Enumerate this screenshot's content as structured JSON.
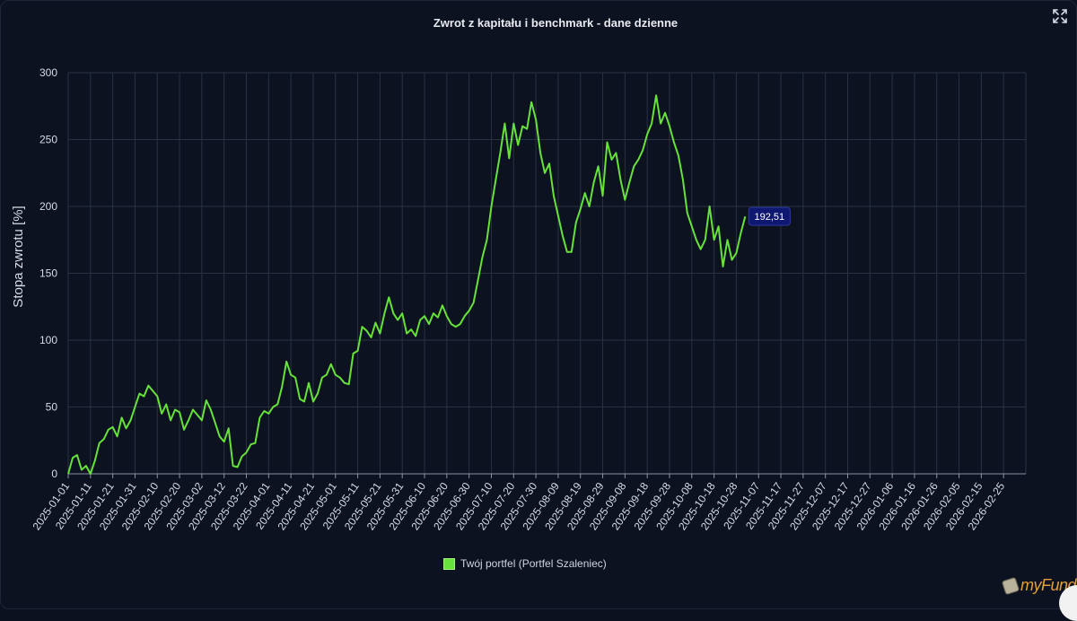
{
  "chart_data": {
    "type": "line",
    "title": "Zwrot z kapitału i benchmark - dane dzienne",
    "ylabel": "Stopa zwrotu [%]",
    "xlabel": "",
    "ylim": [
      0,
      300
    ],
    "yticks": [
      0,
      50,
      100,
      150,
      200,
      250,
      300
    ],
    "xlim": [
      "2025-01-01",
      "2026-03-07"
    ],
    "xtick_labels": [
      "2025-01-01",
      "2025-01-11",
      "2025-01-21",
      "2025-01-31",
      "2025-02-10",
      "2025-02-20",
      "2025-03-02",
      "2025-03-12",
      "2025-03-22",
      "2025-04-01",
      "2025-04-11",
      "2025-04-21",
      "2025-05-01",
      "2025-05-11",
      "2025-05-21",
      "2025-05-31",
      "2025-06-10",
      "2025-06-20",
      "2025-06-30",
      "2025-07-10",
      "2025-07-20",
      "2025-07-30",
      "2025-08-09",
      "2025-08-19",
      "2025-08-29",
      "2025-09-08",
      "2025-09-18",
      "2025-09-28",
      "2025-10-08",
      "2025-10-18",
      "2025-10-28",
      "2025-11-07",
      "2025-11-17",
      "2025-11-27",
      "2025-12-07",
      "2025-12-17",
      "2025-12-27",
      "2026-01-06",
      "2026-01-16",
      "2026-01-26",
      "2026-02-05",
      "2026-02-15",
      "2026-02-25"
    ],
    "grid": true,
    "legend_position": "bottom-center",
    "series": [
      {
        "name": "Twój portfel (Portfel Szaleniec)",
        "color": "#66e23a",
        "points": [
          [
            "2025-01-01",
            0
          ],
          [
            "2025-01-03",
            12
          ],
          [
            "2025-01-05",
            14
          ],
          [
            "2025-01-07",
            3
          ],
          [
            "2025-01-09",
            6
          ],
          [
            "2025-01-11",
            0
          ],
          [
            "2025-01-13",
            10
          ],
          [
            "2025-01-15",
            23
          ],
          [
            "2025-01-17",
            26
          ],
          [
            "2025-01-19",
            33
          ],
          [
            "2025-01-21",
            35
          ],
          [
            "2025-01-23",
            28
          ],
          [
            "2025-01-25",
            42
          ],
          [
            "2025-01-27",
            34
          ],
          [
            "2025-01-29",
            40
          ],
          [
            "2025-01-31",
            50
          ],
          [
            "2025-02-02",
            60
          ],
          [
            "2025-02-04",
            58
          ],
          [
            "2025-02-06",
            66
          ],
          [
            "2025-02-08",
            62
          ],
          [
            "2025-02-10",
            58
          ],
          [
            "2025-02-12",
            45
          ],
          [
            "2025-02-14",
            52
          ],
          [
            "2025-02-16",
            40
          ],
          [
            "2025-02-18",
            48
          ],
          [
            "2025-02-20",
            46
          ],
          [
            "2025-02-22",
            33
          ],
          [
            "2025-02-24",
            40
          ],
          [
            "2025-02-26",
            48
          ],
          [
            "2025-02-28",
            44
          ],
          [
            "2025-03-02",
            40
          ],
          [
            "2025-03-04",
            55
          ],
          [
            "2025-03-06",
            48
          ],
          [
            "2025-03-08",
            38
          ],
          [
            "2025-03-10",
            28
          ],
          [
            "2025-03-12",
            24
          ],
          [
            "2025-03-14",
            34
          ],
          [
            "2025-03-16",
            6
          ],
          [
            "2025-03-18",
            5
          ],
          [
            "2025-03-20",
            13
          ],
          [
            "2025-03-22",
            16
          ],
          [
            "2025-03-24",
            22
          ],
          [
            "2025-03-26",
            23
          ],
          [
            "2025-03-28",
            42
          ],
          [
            "2025-03-30",
            47
          ],
          [
            "2025-04-01",
            45
          ],
          [
            "2025-04-03",
            50
          ],
          [
            "2025-04-05",
            52
          ],
          [
            "2025-04-07",
            65
          ],
          [
            "2025-04-09",
            84
          ],
          [
            "2025-04-11",
            74
          ],
          [
            "2025-04-13",
            72
          ],
          [
            "2025-04-15",
            56
          ],
          [
            "2025-04-17",
            54
          ],
          [
            "2025-04-19",
            68
          ],
          [
            "2025-04-21",
            54
          ],
          [
            "2025-04-23",
            60
          ],
          [
            "2025-04-25",
            72
          ],
          [
            "2025-04-27",
            74
          ],
          [
            "2025-04-29",
            82
          ],
          [
            "2025-05-01",
            74
          ],
          [
            "2025-05-03",
            72
          ],
          [
            "2025-05-05",
            68
          ],
          [
            "2025-05-07",
            67
          ],
          [
            "2025-05-09",
            90
          ],
          [
            "2025-05-11",
            92
          ],
          [
            "2025-05-13",
            110
          ],
          [
            "2025-05-15",
            107
          ],
          [
            "2025-05-17",
            102
          ],
          [
            "2025-05-19",
            113
          ],
          [
            "2025-05-21",
            105
          ],
          [
            "2025-05-23",
            120
          ],
          [
            "2025-05-25",
            132
          ],
          [
            "2025-05-27",
            120
          ],
          [
            "2025-05-29",
            115
          ],
          [
            "2025-05-31",
            120
          ],
          [
            "2025-06-02",
            105
          ],
          [
            "2025-06-04",
            108
          ],
          [
            "2025-06-06",
            103
          ],
          [
            "2025-06-08",
            115
          ],
          [
            "2025-06-10",
            118
          ],
          [
            "2025-06-12",
            112
          ],
          [
            "2025-06-14",
            120
          ],
          [
            "2025-06-16",
            117
          ],
          [
            "2025-06-18",
            126
          ],
          [
            "2025-06-20",
            118
          ],
          [
            "2025-06-22",
            112
          ],
          [
            "2025-06-24",
            110
          ],
          [
            "2025-06-26",
            112
          ],
          [
            "2025-06-28",
            118
          ],
          [
            "2025-06-30",
            122
          ],
          [
            "2025-07-02",
            128
          ],
          [
            "2025-07-04",
            145
          ],
          [
            "2025-07-06",
            162
          ],
          [
            "2025-07-08",
            175
          ],
          [
            "2025-07-10",
            200
          ],
          [
            "2025-07-12",
            220
          ],
          [
            "2025-07-14",
            240
          ],
          [
            "2025-07-16",
            262
          ],
          [
            "2025-07-18",
            236
          ],
          [
            "2025-07-20",
            262
          ],
          [
            "2025-07-22",
            246
          ],
          [
            "2025-07-24",
            260
          ],
          [
            "2025-07-26",
            258
          ],
          [
            "2025-07-28",
            278
          ],
          [
            "2025-07-30",
            265
          ],
          [
            "2025-08-01",
            240
          ],
          [
            "2025-08-03",
            225
          ],
          [
            "2025-08-05",
            232
          ],
          [
            "2025-08-07",
            208
          ],
          [
            "2025-08-09",
            193
          ],
          [
            "2025-08-11",
            178
          ],
          [
            "2025-08-13",
            166
          ],
          [
            "2025-08-15",
            166
          ],
          [
            "2025-08-17",
            188
          ],
          [
            "2025-08-19",
            198
          ],
          [
            "2025-08-21",
            210
          ],
          [
            "2025-08-23",
            200
          ],
          [
            "2025-08-25",
            218
          ],
          [
            "2025-08-27",
            230
          ],
          [
            "2025-08-29",
            208
          ],
          [
            "2025-08-31",
            248
          ],
          [
            "2025-09-02",
            235
          ],
          [
            "2025-09-04",
            240
          ],
          [
            "2025-09-06",
            220
          ],
          [
            "2025-09-08",
            205
          ],
          [
            "2025-09-10",
            218
          ],
          [
            "2025-09-12",
            230
          ],
          [
            "2025-09-14",
            235
          ],
          [
            "2025-09-16",
            242
          ],
          [
            "2025-09-18",
            254
          ],
          [
            "2025-09-20",
            262
          ],
          [
            "2025-09-22",
            283
          ],
          [
            "2025-09-24",
            262
          ],
          [
            "2025-09-26",
            270
          ],
          [
            "2025-09-28",
            260
          ],
          [
            "2025-09-30",
            248
          ],
          [
            "2025-10-02",
            238
          ],
          [
            "2025-10-04",
            220
          ],
          [
            "2025-10-06",
            195
          ],
          [
            "2025-10-08",
            185
          ],
          [
            "2025-10-10",
            175
          ],
          [
            "2025-10-12",
            168
          ],
          [
            "2025-10-14",
            175
          ],
          [
            "2025-10-16",
            200
          ],
          [
            "2025-10-18",
            175
          ],
          [
            "2025-10-20",
            185
          ],
          [
            "2025-10-22",
            155
          ],
          [
            "2025-10-24",
            175
          ],
          [
            "2025-10-26",
            160
          ],
          [
            "2025-10-28",
            165
          ],
          [
            "2025-10-30",
            180
          ],
          [
            "2025-11-01",
            192.51
          ]
        ]
      }
    ],
    "last_value_label": "192,51"
  },
  "icons": {
    "expand": "fullscreen-expand-icon",
    "logo_mark": "myfund-logo-icon"
  },
  "branding": {
    "logo_text": "myFund"
  },
  "colors": {
    "background": "#0c1220",
    "grid": "#2a3242",
    "line": "#66e23a",
    "last_value_badge": "#0f1870"
  }
}
